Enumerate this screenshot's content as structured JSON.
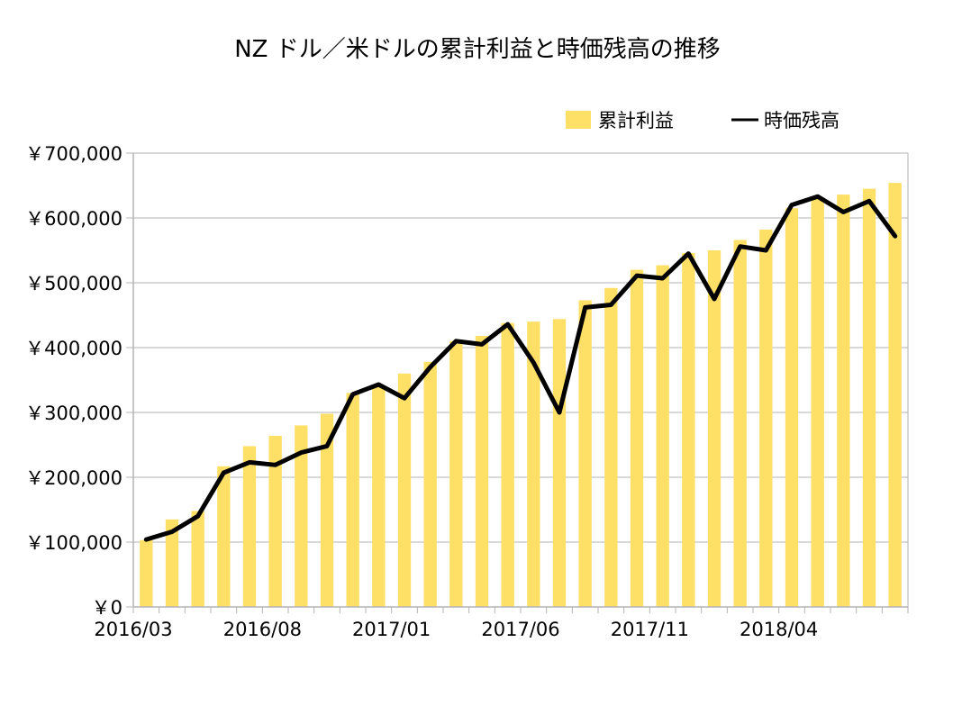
{
  "chart_data": {
    "type": "bar",
    "title": "NZ ドル／米ドルの累計利益と時価残高の推移",
    "xlabel": "",
    "ylabel": "",
    "ylim": [
      0,
      700000
    ],
    "y_ticks": [
      0,
      100000,
      200000,
      300000,
      400000,
      500000,
      600000,
      700000
    ],
    "y_tick_labels": [
      "￥0",
      "￥100,000",
      "￥200,000",
      "￥300,000",
      "￥400,000",
      "￥500,000",
      "￥600,000",
      "￥700,000"
    ],
    "x_tick_labels": [
      "2016/03",
      "2016/08",
      "2017/01",
      "2017/06",
      "2017/11",
      "2018/04"
    ],
    "categories": [
      "2016/03",
      "2016/04",
      "2016/05",
      "2016/06",
      "2016/07",
      "2016/08",
      "2016/09",
      "2016/10",
      "2016/11",
      "2016/12",
      "2017/01",
      "2017/02",
      "2017/03",
      "2017/04",
      "2017/05",
      "2017/06",
      "2017/07",
      "2017/08",
      "2017/09",
      "2017/10",
      "2017/11",
      "2017/12",
      "2018/01",
      "2018/02",
      "2018/03",
      "2018/04",
      "2018/05",
      "2018/06",
      "2018/07",
      "2018/08"
    ],
    "grid": true,
    "legend_position": "top-right",
    "colors": {
      "bars": "#ffe066",
      "line": "#000000",
      "grid": "#b3b3b3"
    },
    "series": [
      {
        "name": "累計利益",
        "kind": "bar",
        "values": [
          103000,
          135000,
          148000,
          217000,
          248000,
          264000,
          280000,
          298000,
          330000,
          340000,
          360000,
          378000,
          410000,
          418000,
          438000,
          440000,
          444000,
          473000,
          492000,
          520000,
          527000,
          546000,
          550000,
          566000,
          582000,
          615000,
          630000,
          636000,
          645000,
          654000
        ]
      },
      {
        "name": "時価残高",
        "kind": "line",
        "values": [
          104000,
          116000,
          140000,
          207000,
          223000,
          219000,
          238000,
          248000,
          328000,
          343000,
          322000,
          370000,
          410000,
          405000,
          436000,
          377000,
          300000,
          462000,
          466000,
          511000,
          507000,
          545000,
          475000,
          556000,
          550000,
          620000,
          633000,
          609000,
          626000,
          572000
        ]
      }
    ]
  }
}
